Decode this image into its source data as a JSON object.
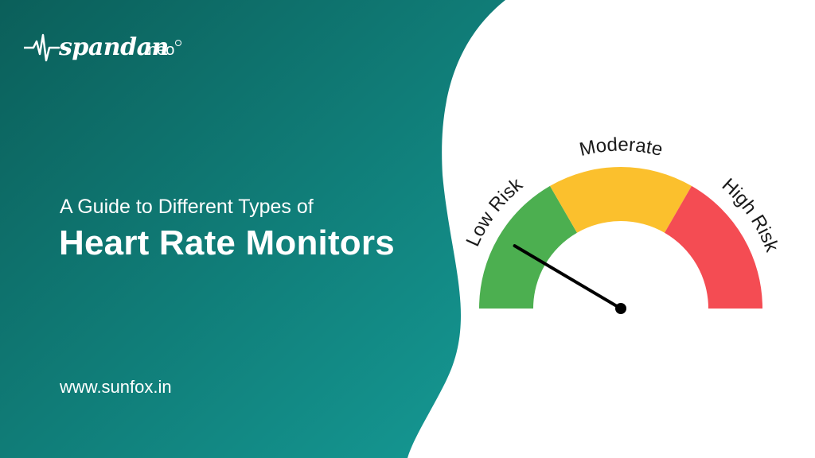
{
  "brand": {
    "name": "spandan",
    "suffix": "neo",
    "pulse_icon": "heartbeat-pulse-icon"
  },
  "headline": {
    "subtitle": "A Guide to Different Types of",
    "title": "Heart Rate Monitors"
  },
  "website": "www.sunfox.in",
  "gauge": {
    "segments": [
      {
        "label": "Low Risk",
        "color": "#4CAF50"
      },
      {
        "label": "Moderate",
        "color": "#FBC02D"
      },
      {
        "label": "High Risk",
        "color": "#F44C53"
      }
    ],
    "needle_color": "#000000",
    "reading_fraction": 0.17
  },
  "colors": {
    "teal_dark": "#0B5F5A",
    "teal_light": "#159A95",
    "background": "#FFFFFF"
  }
}
